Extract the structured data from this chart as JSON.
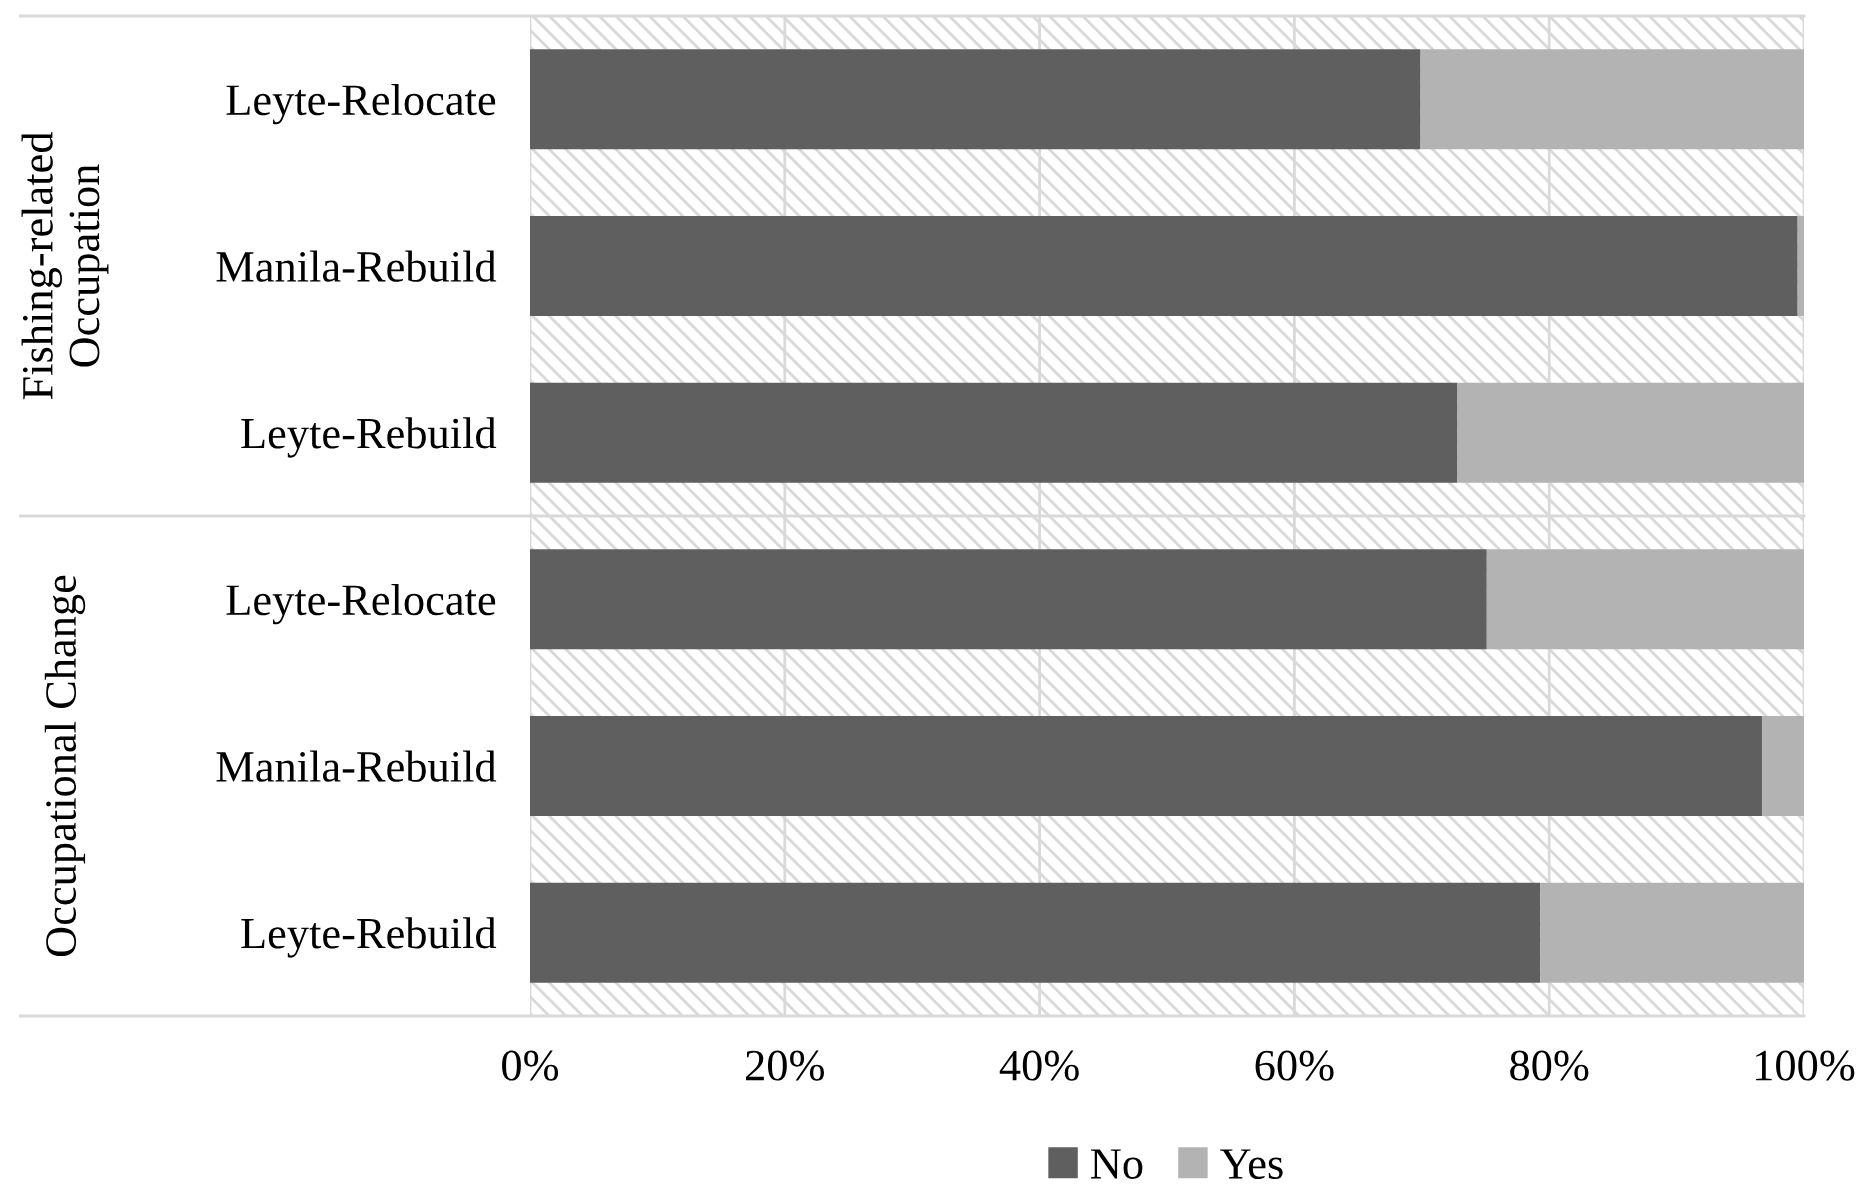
{
  "chart_data": {
    "type": "bar",
    "orientation": "horizontal",
    "stacked": true,
    "categories": [
      "Leyte-Relocate",
      "Manila-Rebuild",
      "Leyte-Rebuild",
      "Leyte-Relocate",
      "Manila-Rebuild",
      "Leyte-Rebuild"
    ],
    "series": [
      {
        "name": "No",
        "color": "#5f5f5f",
        "values": [
          69.9,
          99.5,
          72.8,
          75.1,
          96.7,
          79.3
        ]
      },
      {
        "name": "Yes",
        "color": "#b3b3b3",
        "values": [
          30.1,
          0.5,
          27.2,
          24.9,
          3.3,
          20.7
        ]
      }
    ],
    "xlim": [
      0,
      100
    ],
    "xticks": [
      {
        "value": 0,
        "label": "0%"
      },
      {
        "value": 20,
        "label": "20%"
      },
      {
        "value": 40,
        "label": "40%"
      },
      {
        "value": 60,
        "label": "60%"
      },
      {
        "value": 80,
        "label": "80%"
      },
      {
        "value": 100,
        "label": "100%"
      }
    ],
    "annotations": [
      "Fishing-related\nOccupation",
      "Occupational Change"
    ],
    "grid": "x",
    "legend": "bottom"
  }
}
